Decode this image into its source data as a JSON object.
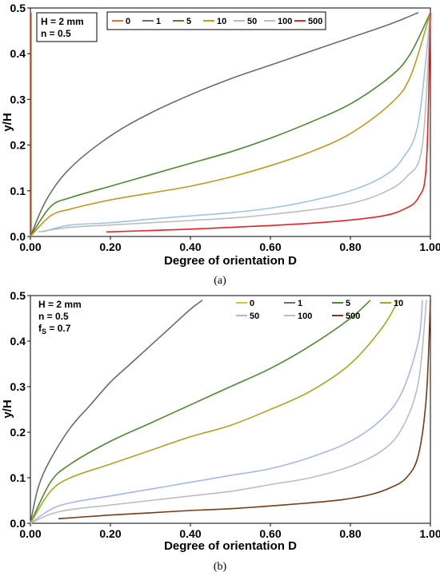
{
  "chart_data": [
    {
      "type": "line",
      "panel_label": "(a)",
      "xlabel": "Degree of orientation D",
      "ylabel": "y/H",
      "xlim": [
        0,
        1
      ],
      "ylim": [
        0,
        0.5
      ],
      "xticks": [
        "0.00",
        "0.20",
        "0.40",
        "0.60",
        "0.80",
        "1.00"
      ],
      "yticks": [
        "0.0",
        "0.1",
        "0.2",
        "0.3",
        "0.4",
        "0.5"
      ],
      "params": [
        "H = 2 mm",
        "n = 0.5"
      ],
      "legend_position": "top",
      "grid": false,
      "series": [
        {
          "name": "0",
          "color": "#e8742a",
          "x": [
            0.002,
            0.002
          ],
          "y": [
            0.0,
            0.49
          ]
        },
        {
          "name": "1",
          "color": "#6b6b6b",
          "x": [
            0.0,
            0.04,
            0.1,
            0.2,
            0.3,
            0.4,
            0.5,
            0.6,
            0.7,
            0.8,
            0.9,
            0.97
          ],
          "y": [
            0.0,
            0.08,
            0.15,
            0.22,
            0.27,
            0.31,
            0.345,
            0.375,
            0.405,
            0.435,
            0.465,
            0.49
          ]
        },
        {
          "name": "5",
          "color": "#4c8a2e",
          "x": [
            0.0,
            0.05,
            0.1,
            0.2,
            0.3,
            0.4,
            0.5,
            0.6,
            0.7,
            0.8,
            0.9,
            0.95,
            1.0
          ],
          "y": [
            0.0,
            0.065,
            0.085,
            0.11,
            0.135,
            0.16,
            0.185,
            0.215,
            0.25,
            0.29,
            0.35,
            0.4,
            0.49
          ]
        },
        {
          "name": "10",
          "color": "#c9961d",
          "x": [
            0.0,
            0.05,
            0.1,
            0.2,
            0.3,
            0.4,
            0.5,
            0.6,
            0.7,
            0.8,
            0.9,
            0.95,
            1.0
          ],
          "y": [
            0.0,
            0.045,
            0.06,
            0.08,
            0.095,
            0.11,
            0.13,
            0.155,
            0.185,
            0.225,
            0.29,
            0.35,
            0.49
          ]
        },
        {
          "name": "50",
          "color": "#9ec4e2",
          "x": [
            0.03,
            0.1,
            0.2,
            0.3,
            0.4,
            0.5,
            0.6,
            0.7,
            0.8,
            0.88,
            0.93,
            0.97,
            1.0
          ],
          "y": [
            0.01,
            0.025,
            0.03,
            0.038,
            0.045,
            0.052,
            0.062,
            0.078,
            0.1,
            0.13,
            0.17,
            0.25,
            0.49
          ]
        },
        {
          "name": "100",
          "color": "#bdbdbd",
          "x": [
            0.02,
            0.1,
            0.2,
            0.3,
            0.4,
            0.5,
            0.6,
            0.7,
            0.8,
            0.88,
            0.94,
            0.98,
            1.0
          ],
          "y": [
            0.01,
            0.02,
            0.025,
            0.03,
            0.035,
            0.04,
            0.048,
            0.058,
            0.072,
            0.095,
            0.13,
            0.2,
            0.49
          ]
        },
        {
          "name": "500",
          "color": "#ee2020",
          "x": [
            0.19,
            0.3,
            0.4,
            0.5,
            0.6,
            0.7,
            0.8,
            0.88,
            0.93,
            0.97,
            0.99,
            1.0
          ],
          "y": [
            0.01,
            0.013,
            0.016,
            0.02,
            0.024,
            0.029,
            0.036,
            0.045,
            0.058,
            0.085,
            0.16,
            0.49
          ]
        }
      ]
    },
    {
      "type": "line",
      "panel_label": "(b)",
      "xlabel": "Degree of orientation D",
      "ylabel": "y/H",
      "xlim": [
        0,
        1
      ],
      "ylim": [
        0,
        0.5
      ],
      "xticks": [
        "0.00",
        "0.20",
        "0.40",
        "0.60",
        "0.80",
        "1.00"
      ],
      "yticks": [
        "0.0",
        "0.1",
        "0.2",
        "0.3",
        "0.4",
        "0.5"
      ],
      "params": [
        "H = 2 mm",
        "n = 0.5",
        "f",
        "S",
        " = 0.7"
      ],
      "legend_position": "top-right",
      "grid": false,
      "series": [
        {
          "name": "0",
          "color": "#d8c23a",
          "x": [],
          "y": []
        },
        {
          "name": "1",
          "color": "#6b6b6b",
          "x": [
            0.0,
            0.02,
            0.05,
            0.1,
            0.15,
            0.2,
            0.25,
            0.3,
            0.35,
            0.4,
            0.43
          ],
          "y": [
            0.0,
            0.08,
            0.14,
            0.21,
            0.26,
            0.31,
            0.35,
            0.39,
            0.43,
            0.47,
            0.49
          ]
        },
        {
          "name": "5",
          "color": "#4c8a2e",
          "x": [
            0.0,
            0.05,
            0.1,
            0.2,
            0.3,
            0.4,
            0.5,
            0.6,
            0.7,
            0.8,
            0.85
          ],
          "y": [
            0.0,
            0.09,
            0.13,
            0.18,
            0.22,
            0.26,
            0.3,
            0.34,
            0.39,
            0.45,
            0.49
          ]
        },
        {
          "name": "10",
          "color": "#a8a820",
          "x": [
            0.0,
            0.05,
            0.1,
            0.2,
            0.3,
            0.4,
            0.5,
            0.6,
            0.7,
            0.8,
            0.88,
            0.92
          ],
          "y": [
            0.0,
            0.07,
            0.1,
            0.13,
            0.16,
            0.19,
            0.215,
            0.25,
            0.29,
            0.35,
            0.43,
            0.49
          ]
        },
        {
          "name": "50",
          "color": "#a6b7e8",
          "x": [
            0.0,
            0.05,
            0.1,
            0.2,
            0.3,
            0.4,
            0.5,
            0.6,
            0.7,
            0.8,
            0.88,
            0.93,
            0.97,
            0.98
          ],
          "y": [
            0.0,
            0.03,
            0.045,
            0.06,
            0.075,
            0.09,
            0.105,
            0.12,
            0.145,
            0.18,
            0.23,
            0.29,
            0.4,
            0.49
          ]
        },
        {
          "name": "100",
          "color": "#bdbdbd",
          "x": [
            0.0,
            0.05,
            0.1,
            0.2,
            0.3,
            0.4,
            0.5,
            0.6,
            0.7,
            0.8,
            0.88,
            0.93,
            0.97,
            0.99
          ],
          "y": [
            0.0,
            0.02,
            0.03,
            0.04,
            0.05,
            0.06,
            0.07,
            0.085,
            0.1,
            0.125,
            0.16,
            0.21,
            0.31,
            0.49
          ]
        },
        {
          "name": "500",
          "color": "#7b3a12",
          "x": [
            0.07,
            0.2,
            0.3,
            0.4,
            0.5,
            0.6,
            0.7,
            0.78,
            0.85,
            0.9,
            0.94,
            0.97,
            0.99,
            1.0
          ],
          "y": [
            0.01,
            0.018,
            0.023,
            0.028,
            0.032,
            0.038,
            0.045,
            0.052,
            0.063,
            0.078,
            0.1,
            0.15,
            0.28,
            0.49
          ]
        }
      ]
    }
  ]
}
